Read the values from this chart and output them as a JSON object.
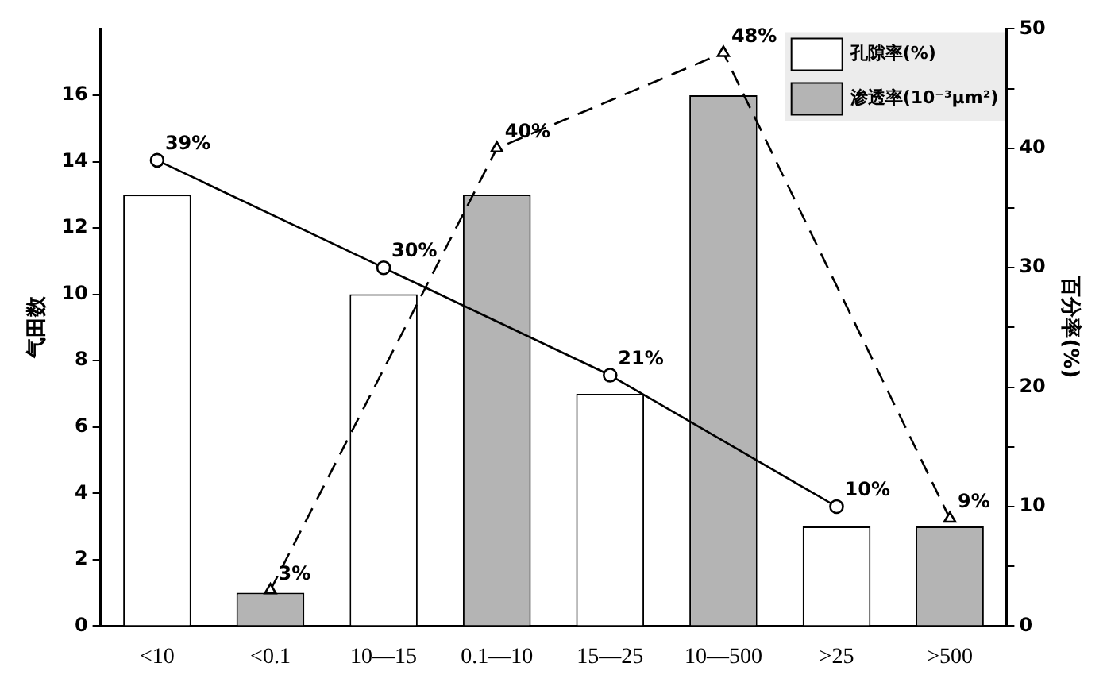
{
  "chart_data": {
    "type": "bar",
    "ylabel": "气田数",
    "y2label": "百分率(%)",
    "categories": [
      "<10",
      "<0.1",
      "10—15",
      "0.1—10",
      "15—25",
      "10—500",
      ">25",
      ">500"
    ],
    "series": [
      {
        "name": "孔隙率(%)",
        "color": "#ffffff",
        "values": [
          13,
          null,
          10,
          null,
          7,
          null,
          3,
          null
        ]
      },
      {
        "name": "渗透率(10⁻³μm²)",
        "color": "#b4b4b4",
        "values": [
          null,
          1,
          null,
          13,
          null,
          16,
          null,
          3
        ]
      },
      {
        "type": "line",
        "axis": "y2",
        "color": "#000000",
        "marker": "circle",
        "line_style": "solid",
        "values": [
          39,
          null,
          30,
          null,
          21,
          null,
          10,
          null
        ],
        "value_labels": [
          "39%",
          null,
          "30%",
          null,
          "21%",
          null,
          "10%",
          null
        ]
      },
      {
        "type": "line",
        "axis": "y2",
        "color": "#000000",
        "marker": "triangle",
        "line_style": "dashed",
        "values": [
          null,
          3,
          null,
          40,
          null,
          48,
          null,
          9
        ],
        "value_labels": [
          null,
          "3%",
          null,
          "40%",
          null,
          "48%",
          null,
          "9%"
        ]
      }
    ],
    "ylim": [
      0,
      18
    ],
    "yticks": [
      0,
      2,
      4,
      6,
      8,
      10,
      12,
      14,
      16
    ],
    "y2lim": [
      0,
      50
    ],
    "y2ticks": [
      0,
      {
        "value": 5,
        "label": null
      },
      10,
      {
        "value": 15,
        "label": null
      },
      20,
      {
        "value": 25,
        "label": null
      },
      30,
      {
        "value": 35,
        "label": null
      },
      40,
      {
        "value": 45,
        "label": null
      },
      50
    ],
    "grid": false,
    "legend": "top right"
  }
}
